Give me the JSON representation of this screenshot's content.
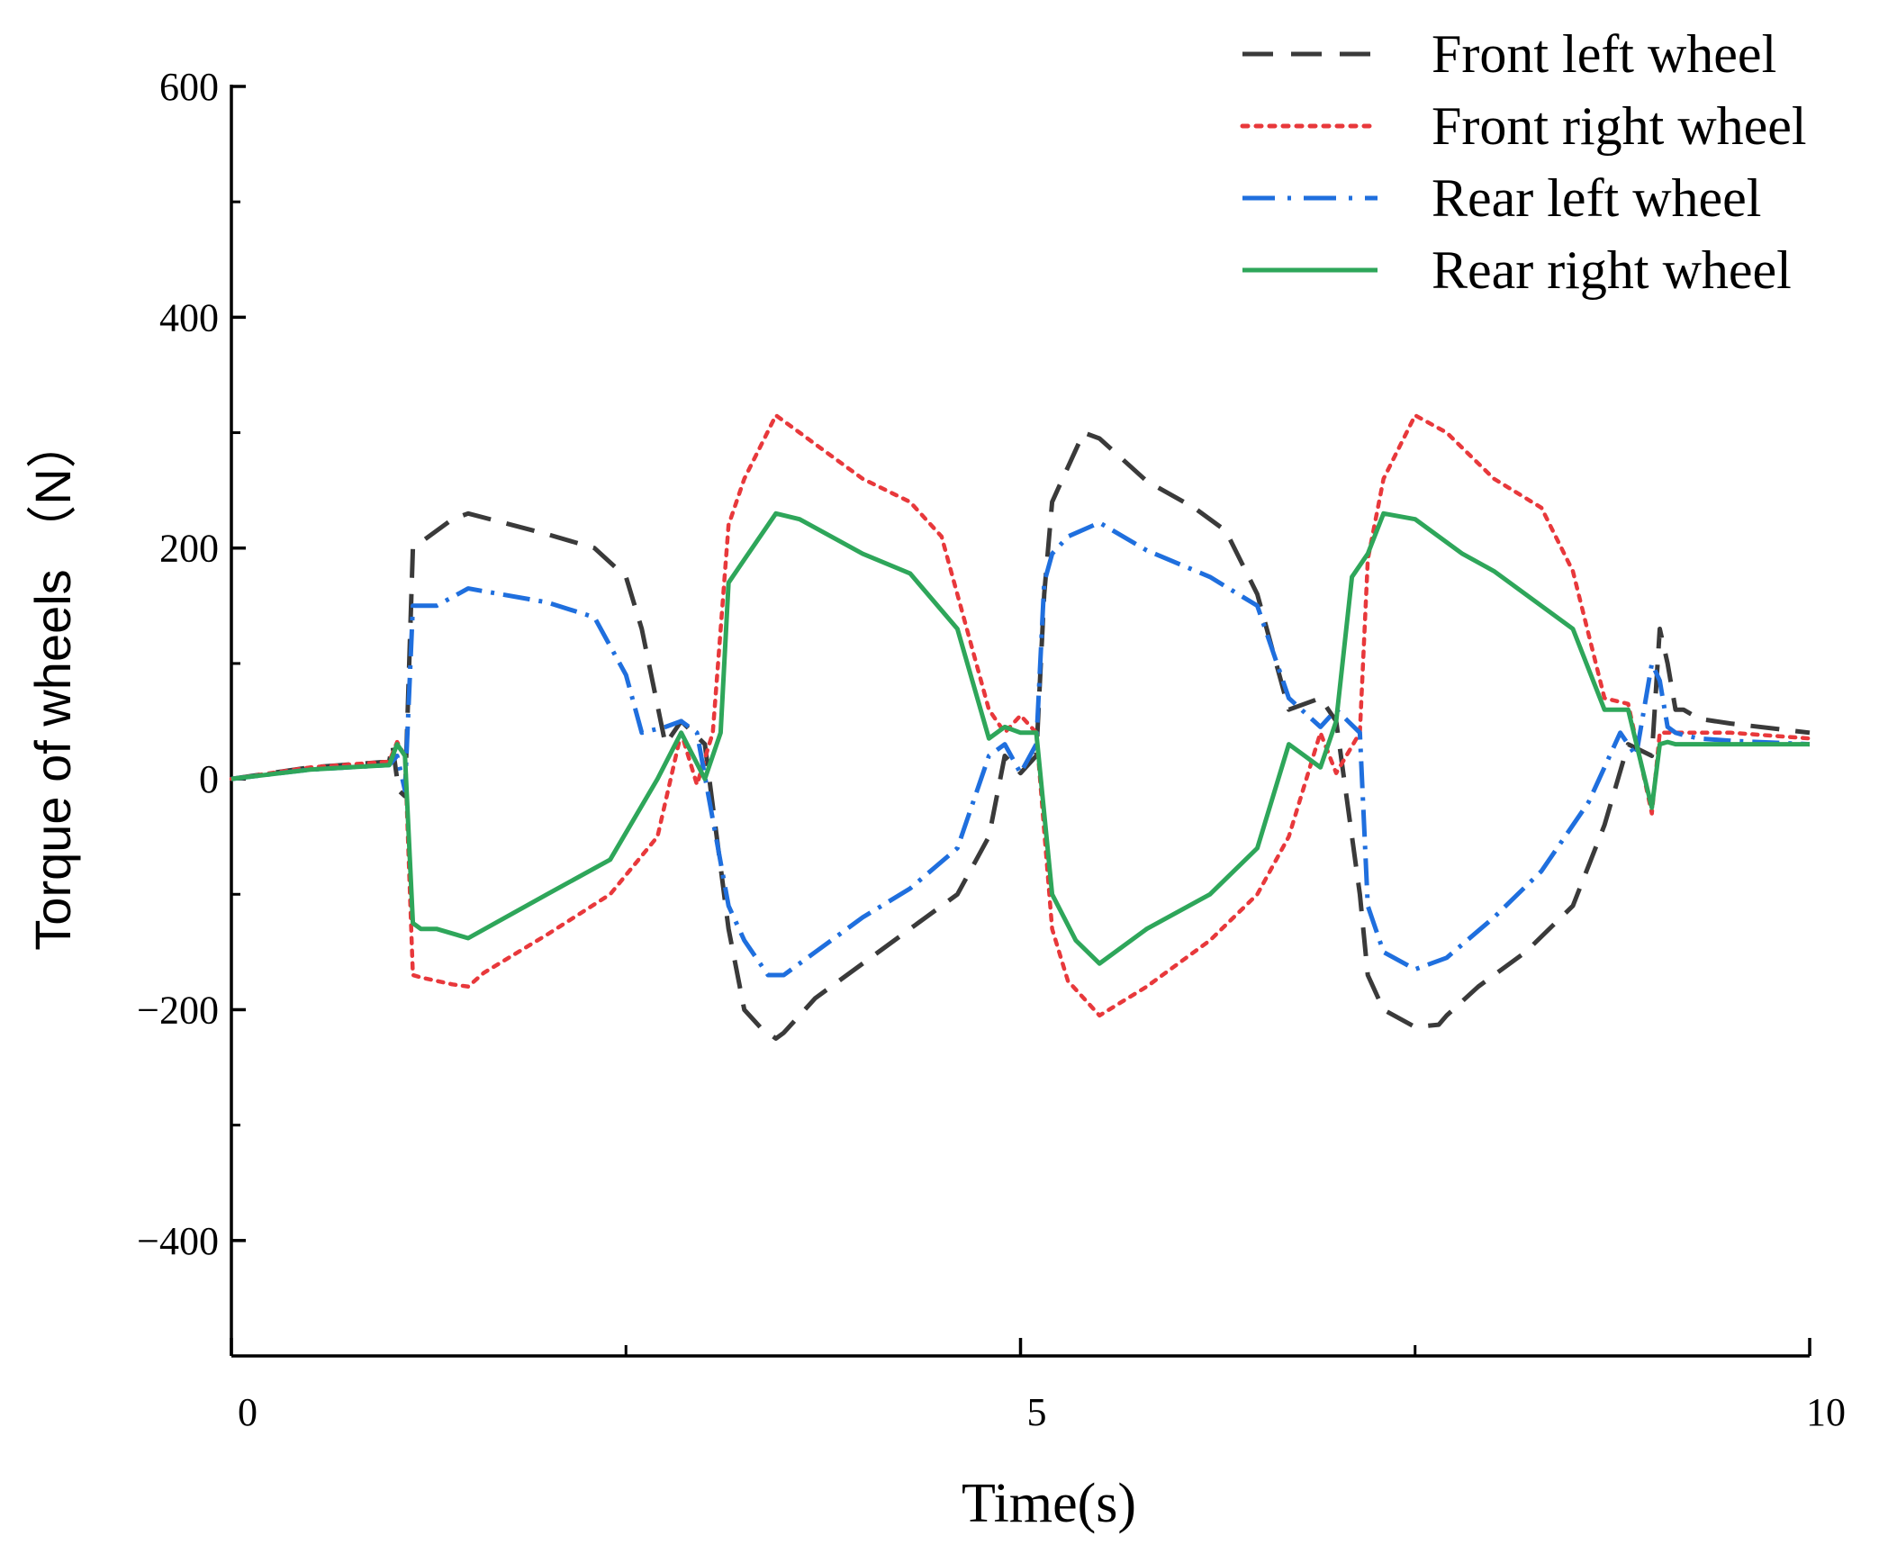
{
  "chart_data": {
    "type": "line",
    "title": "",
    "xlabel": "Time(s)",
    "ylabel": "Torque of wheels （N）",
    "xlim": [
      0,
      10
    ],
    "ylim": [
      -500,
      600
    ],
    "x_ticks": [
      0,
      5,
      10
    ],
    "x_minor_ticks": [
      2.5,
      7.5
    ],
    "y_ticks": [
      -400,
      -200,
      0,
      200,
      400,
      600
    ],
    "y_minor_ticks": [
      -300,
      -100,
      100,
      300,
      500
    ],
    "grid": false,
    "legend_position": "top-right",
    "series": [
      {
        "name": "Front left wheel",
        "color": "#3a3a3a",
        "style": "dashed",
        "x": [
          0,
          0.5,
          1.0,
          1.02,
          1.06,
          1.1,
          1.15,
          1.2,
          1.4,
          1.5,
          2.0,
          2.3,
          2.5,
          2.6,
          2.75,
          2.85,
          3.0,
          3.15,
          3.25,
          3.35,
          3.45,
          3.5,
          3.7,
          4.0,
          4.3,
          4.6,
          4.8,
          4.9,
          5.0,
          5.1,
          5.15,
          5.2,
          5.25,
          5.4,
          5.5,
          5.8,
          6.1,
          6.3,
          6.5,
          6.7,
          6.9,
          7.0,
          7.15,
          7.2,
          7.3,
          7.5,
          7.65,
          7.7,
          7.9,
          8.2,
          8.5,
          8.7,
          8.85,
          9.0,
          9.05,
          9.1,
          9.15,
          9.2,
          9.3,
          9.5,
          10.0
        ],
        "y": [
          0,
          10,
          15,
          30,
          -10,
          -15,
          200,
          205,
          225,
          230,
          212,
          200,
          175,
          130,
          30,
          50,
          30,
          -130,
          -200,
          -215,
          -225,
          -220,
          -190,
          -160,
          -130,
          -100,
          -50,
          20,
          5,
          20,
          160,
          240,
          255,
          300,
          295,
          258,
          235,
          215,
          160,
          60,
          70,
          50,
          -100,
          -170,
          -200,
          -215,
          -213,
          -205,
          -180,
          -150,
          -110,
          -40,
          30,
          20,
          130,
          100,
          60,
          60,
          52,
          48,
          40
        ]
      },
      {
        "name": "Front right wheel",
        "color": "#e8383b",
        "style": "dotted",
        "x": [
          0,
          0.5,
          1.0,
          1.05,
          1.1,
          1.15,
          1.2,
          1.4,
          1.5,
          1.6,
          2.0,
          2.4,
          2.7,
          2.85,
          2.95,
          3.05,
          3.15,
          3.25,
          3.45,
          3.6,
          3.7,
          4.0,
          4.3,
          4.5,
          4.8,
          4.9,
          5.0,
          5.1,
          5.2,
          5.3,
          5.5,
          5.8,
          6.2,
          6.5,
          6.7,
          6.9,
          7.0,
          7.15,
          7.2,
          7.3,
          7.5,
          7.7,
          8.0,
          8.3,
          8.5,
          8.7,
          8.85,
          9.0,
          9.05,
          9.1,
          9.2,
          9.5,
          10.0
        ],
        "y": [
          0,
          10,
          15,
          32,
          20,
          -170,
          -172,
          -178,
          -180,
          -168,
          -135,
          -100,
          -50,
          40,
          -5,
          40,
          220,
          260,
          315,
          300,
          290,
          260,
          240,
          210,
          60,
          40,
          55,
          40,
          -130,
          -175,
          -205,
          -180,
          -140,
          -100,
          -50,
          40,
          5,
          40,
          190,
          260,
          315,
          300,
          260,
          235,
          180,
          70,
          65,
          -30,
          40,
          40,
          40,
          40,
          35
        ]
      },
      {
        "name": "Rear left wheel",
        "color": "#1f6fde",
        "style": "dash-dot",
        "x": [
          0,
          0.5,
          1.0,
          1.05,
          1.1,
          1.15,
          1.2,
          1.3,
          1.5,
          2.0,
          2.3,
          2.5,
          2.6,
          2.75,
          2.85,
          2.95,
          3.15,
          3.25,
          3.4,
          3.5,
          3.7,
          4.0,
          4.3,
          4.6,
          4.8,
          4.9,
          5.0,
          5.1,
          5.15,
          5.2,
          5.3,
          5.5,
          5.8,
          6.2,
          6.5,
          6.7,
          6.9,
          7.0,
          7.15,
          7.2,
          7.3,
          7.5,
          7.7,
          8.0,
          8.3,
          8.6,
          8.8,
          8.9,
          9.0,
          9.05,
          9.1,
          9.15,
          9.2,
          9.3,
          9.5,
          10.0
        ],
        "y": [
          0,
          8,
          12,
          20,
          -10,
          150,
          150,
          150,
          165,
          153,
          140,
          90,
          40,
          45,
          50,
          40,
          -110,
          -140,
          -170,
          -170,
          -150,
          -120,
          -95,
          -60,
          20,
          30,
          5,
          30,
          170,
          195,
          210,
          222,
          198,
          175,
          150,
          70,
          45,
          60,
          40,
          -110,
          -150,
          -165,
          -155,
          -120,
          -80,
          -20,
          40,
          20,
          100,
          85,
          45,
          40,
          38,
          35,
          33,
          30
        ]
      },
      {
        "name": "Rear right wheel",
        "color": "#2ea65a",
        "style": "solid",
        "x": [
          0,
          0.5,
          1.0,
          1.05,
          1.1,
          1.15,
          1.2,
          1.3,
          1.5,
          2.0,
          2.4,
          2.7,
          2.85,
          3.0,
          3.1,
          3.15,
          3.25,
          3.45,
          3.6,
          4.0,
          4.3,
          4.6,
          4.8,
          4.9,
          5.0,
          5.1,
          5.2,
          5.35,
          5.5,
          5.8,
          6.2,
          6.5,
          6.7,
          6.9,
          7.0,
          7.1,
          7.2,
          7.3,
          7.5,
          7.8,
          8.0,
          8.5,
          8.7,
          8.85,
          9.0,
          9.05,
          9.1,
          9.15,
          9.2,
          9.3,
          9.5,
          10.0
        ],
        "y": [
          0,
          8,
          12,
          30,
          20,
          -125,
          -130,
          -130,
          -138,
          -100,
          -70,
          0,
          40,
          0,
          40,
          170,
          190,
          230,
          225,
          195,
          178,
          130,
          35,
          45,
          40,
          40,
          -100,
          -140,
          -160,
          -130,
          -100,
          -60,
          30,
          10,
          50,
          175,
          195,
          230,
          225,
          195,
          180,
          130,
          60,
          60,
          -25,
          30,
          32,
          30,
          30,
          30,
          30,
          30
        ]
      }
    ]
  }
}
